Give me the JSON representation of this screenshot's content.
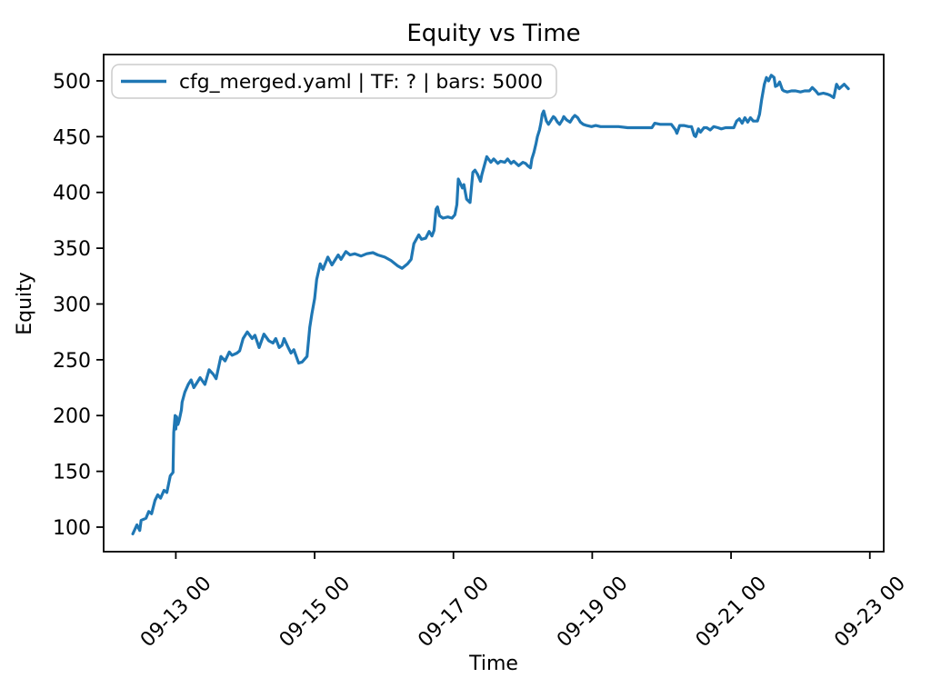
{
  "figure": {
    "background": "#ffffff",
    "accent_color": "#1f77b4",
    "legend_edge_color": "#cccccc"
  },
  "chart_data": {
    "type": "line",
    "title": "Equity vs Time",
    "xlabel": "Time",
    "ylabel": "Equity",
    "grid": false,
    "legend_position": "upper-left",
    "x_unit": "days since 09-12 00:00 (dates shown as MM-DD HH)",
    "xlim": [
      -0.04,
      11.2
    ],
    "ylim": [
      78,
      523.6
    ],
    "x_ticks": [
      {
        "t": 1.0,
        "label": "09-13 00"
      },
      {
        "t": 3.0,
        "label": "09-15 00"
      },
      {
        "t": 5.0,
        "label": "09-17 00"
      },
      {
        "t": 7.0,
        "label": "09-19 00"
      },
      {
        "t": 9.0,
        "label": "09-21 00"
      },
      {
        "t": 11.0,
        "label": "09-23 00"
      }
    ],
    "y_ticks": [
      100,
      150,
      200,
      250,
      300,
      350,
      400,
      450,
      500
    ],
    "series": [
      {
        "name": "cfg_merged.yaml | TF: ? | bars: 5000",
        "color": "#1f77b4",
        "points": [
          [
            0.38,
            94
          ],
          [
            0.44,
            102
          ],
          [
            0.48,
            97
          ],
          [
            0.5,
            106
          ],
          [
            0.57,
            108
          ],
          [
            0.61,
            114
          ],
          [
            0.65,
            112
          ],
          [
            0.7,
            124
          ],
          [
            0.74,
            129
          ],
          [
            0.78,
            126
          ],
          [
            0.83,
            133
          ],
          [
            0.87,
            131
          ],
          [
            0.92,
            146
          ],
          [
            0.96,
            149
          ],
          [
            0.97,
            185
          ],
          [
            0.99,
            200
          ],
          [
            1.0,
            188
          ],
          [
            1.01,
            199
          ],
          [
            1.03,
            192
          ],
          [
            1.05,
            196
          ],
          [
            1.08,
            205
          ],
          [
            1.09,
            212
          ],
          [
            1.13,
            221
          ],
          [
            1.18,
            228
          ],
          [
            1.22,
            232
          ],
          [
            1.26,
            225
          ],
          [
            1.31,
            230
          ],
          [
            1.35,
            234
          ],
          [
            1.42,
            228
          ],
          [
            1.48,
            241
          ],
          [
            1.54,
            237
          ],
          [
            1.58,
            233
          ],
          [
            1.65,
            253
          ],
          [
            1.71,
            249
          ],
          [
            1.77,
            257
          ],
          [
            1.81,
            254
          ],
          [
            1.88,
            256
          ],
          [
            1.92,
            258
          ],
          [
            1.97,
            269
          ],
          [
            2.03,
            275
          ],
          [
            2.1,
            269
          ],
          [
            2.14,
            272
          ],
          [
            2.2,
            261
          ],
          [
            2.27,
            273
          ],
          [
            2.34,
            267
          ],
          [
            2.4,
            265
          ],
          [
            2.44,
            269
          ],
          [
            2.49,
            261
          ],
          [
            2.53,
            263
          ],
          [
            2.56,
            269
          ],
          [
            2.62,
            261
          ],
          [
            2.66,
            256
          ],
          [
            2.7,
            259
          ],
          [
            2.77,
            247
          ],
          [
            2.82,
            248
          ],
          [
            2.89,
            253
          ],
          [
            2.93,
            279
          ],
          [
            2.96,
            291
          ],
          [
            3.0,
            305
          ],
          [
            3.03,
            322
          ],
          [
            3.08,
            336
          ],
          [
            3.12,
            331
          ],
          [
            3.19,
            342
          ],
          [
            3.25,
            335
          ],
          [
            3.34,
            344
          ],
          [
            3.38,
            340
          ],
          [
            3.45,
            347
          ],
          [
            3.51,
            344
          ],
          [
            3.58,
            345
          ],
          [
            3.67,
            343
          ],
          [
            3.75,
            345
          ],
          [
            3.84,
            346
          ],
          [
            3.91,
            344
          ],
          [
            4.01,
            342
          ],
          [
            4.1,
            339
          ],
          [
            4.2,
            334
          ],
          [
            4.26,
            332
          ],
          [
            4.34,
            336
          ],
          [
            4.39,
            340
          ],
          [
            4.43,
            354
          ],
          [
            4.5,
            362
          ],
          [
            4.54,
            358
          ],
          [
            4.6,
            359
          ],
          [
            4.65,
            365
          ],
          [
            4.69,
            361
          ],
          [
            4.72,
            366
          ],
          [
            4.75,
            385
          ],
          [
            4.77,
            387
          ],
          [
            4.8,
            379
          ],
          [
            4.85,
            377
          ],
          [
            4.92,
            378
          ],
          [
            4.98,
            377
          ],
          [
            5.02,
            380
          ],
          [
            5.05,
            389
          ],
          [
            5.07,
            412
          ],
          [
            5.13,
            404
          ],
          [
            5.15,
            407
          ],
          [
            5.19,
            394
          ],
          [
            5.24,
            391
          ],
          [
            5.28,
            418
          ],
          [
            5.31,
            420
          ],
          [
            5.35,
            416
          ],
          [
            5.39,
            410
          ],
          [
            5.41,
            416
          ],
          [
            5.48,
            432
          ],
          [
            5.54,
            427
          ],
          [
            5.58,
            430
          ],
          [
            5.64,
            426
          ],
          [
            5.68,
            428
          ],
          [
            5.74,
            427
          ],
          [
            5.78,
            430
          ],
          [
            5.83,
            426
          ],
          [
            5.87,
            428
          ],
          [
            5.94,
            424
          ],
          [
            6.0,
            427
          ],
          [
            6.04,
            426
          ],
          [
            6.07,
            424
          ],
          [
            6.11,
            422
          ],
          [
            6.13,
            430
          ],
          [
            6.16,
            436
          ],
          [
            6.19,
            444
          ],
          [
            6.21,
            450
          ],
          [
            6.24,
            456
          ],
          [
            6.26,
            462
          ],
          [
            6.28,
            470
          ],
          [
            6.3,
            473
          ],
          [
            6.34,
            464
          ],
          [
            6.37,
            461
          ],
          [
            6.41,
            465
          ],
          [
            6.44,
            468
          ],
          [
            6.46,
            467
          ],
          [
            6.5,
            463
          ],
          [
            6.53,
            461
          ],
          [
            6.57,
            465
          ],
          [
            6.59,
            468
          ],
          [
            6.63,
            465
          ],
          [
            6.68,
            463
          ],
          [
            6.72,
            467
          ],
          [
            6.75,
            469
          ],
          [
            6.79,
            467
          ],
          [
            6.83,
            463
          ],
          [
            6.87,
            461
          ],
          [
            6.92,
            460
          ],
          [
            6.99,
            459
          ],
          [
            7.05,
            460
          ],
          [
            7.12,
            459
          ],
          [
            7.25,
            459
          ],
          [
            7.38,
            459
          ],
          [
            7.51,
            458
          ],
          [
            7.64,
            458
          ],
          [
            7.77,
            458
          ],
          [
            7.86,
            458
          ],
          [
            7.9,
            462
          ],
          [
            7.98,
            461
          ],
          [
            8.07,
            461
          ],
          [
            8.14,
            461
          ],
          [
            8.2,
            456
          ],
          [
            8.22,
            453
          ],
          [
            8.26,
            460
          ],
          [
            8.32,
            460
          ],
          [
            8.39,
            459
          ],
          [
            8.43,
            459
          ],
          [
            8.47,
            451
          ],
          [
            8.49,
            450
          ],
          [
            8.53,
            457
          ],
          [
            8.56,
            454
          ],
          [
            8.61,
            458
          ],
          [
            8.65,
            458
          ],
          [
            8.7,
            456
          ],
          [
            8.75,
            459
          ],
          [
            8.81,
            458
          ],
          [
            8.86,
            457
          ],
          [
            8.92,
            458
          ],
          [
            8.99,
            458
          ],
          [
            9.04,
            458
          ],
          [
            9.08,
            464
          ],
          [
            9.12,
            466
          ],
          [
            9.16,
            462
          ],
          [
            9.2,
            467
          ],
          [
            9.24,
            463
          ],
          [
            9.28,
            467
          ],
          [
            9.32,
            464
          ],
          [
            9.38,
            464
          ],
          [
            9.41,
            470
          ],
          [
            9.44,
            483
          ],
          [
            9.48,
            497
          ],
          [
            9.51,
            503
          ],
          [
            9.54,
            500
          ],
          [
            9.58,
            505
          ],
          [
            9.62,
            503
          ],
          [
            9.64,
            495
          ],
          [
            9.67,
            496
          ],
          [
            9.7,
            499
          ],
          [
            9.74,
            492
          ],
          [
            9.76,
            491
          ],
          [
            9.81,
            490
          ],
          [
            9.87,
            491
          ],
          [
            9.93,
            491
          ],
          [
            10.0,
            490
          ],
          [
            10.06,
            491
          ],
          [
            10.13,
            491
          ],
          [
            10.17,
            494
          ],
          [
            10.22,
            491
          ],
          [
            10.26,
            488
          ],
          [
            10.33,
            489
          ],
          [
            10.39,
            488
          ],
          [
            10.43,
            487
          ],
          [
            10.48,
            485
          ],
          [
            10.52,
            497
          ],
          [
            10.56,
            493
          ],
          [
            10.63,
            497
          ],
          [
            10.69,
            493
          ]
        ]
      }
    ]
  }
}
